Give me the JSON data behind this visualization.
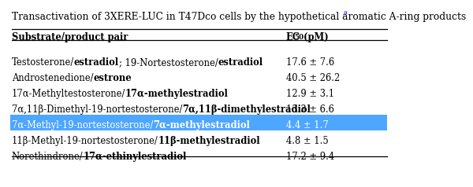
{
  "title": "Transactivation of 3XERE-LUC in T47Dco cells by the hypothetical aromatic A-ring products",
  "title_superscript": "a",
  "col1_header": "Substrate/product pair",
  "col2_header": "EC50 (pM)",
  "highlight_color": "#4da6ff",
  "background_color": "#ffffff",
  "title_fs": 8.8,
  "row_fs": 8.3,
  "rows": [
    {
      "parts": [
        [
          "Testosterone/",
          false
        ],
        [
          "estradiol",
          true
        ],
        [
          "; 19-Nortestosterone/",
          false
        ],
        [
          "estradiol",
          true
        ]
      ],
      "ec50": "17.6 ± 7.6",
      "highlight": false
    },
    {
      "parts": [
        [
          "Androstenedione/",
          false
        ],
        [
          "estrone",
          true
        ]
      ],
      "ec50": "40.5 ± 26.2",
      "highlight": false
    },
    {
      "parts": [
        [
          "17α-Methyltestosterone/",
          false
        ],
        [
          "17α-methylestradiol",
          true
        ]
      ],
      "ec50": "12.9 ± 3.1",
      "highlight": false
    },
    {
      "parts": [
        [
          "7α,11β-Dimethyl-19-nortestosterone/",
          false
        ],
        [
          "7α,11β-dimethylestradiol",
          true
        ]
      ],
      "ec50": "13.3 ± 6.6",
      "highlight": false
    },
    {
      "parts": [
        [
          "7α-Methyl-19-nortestosterone/",
          false
        ],
        [
          "7α-methylestradiol",
          true
        ]
      ],
      "ec50": "4.4 ± 1.7",
      "highlight": true
    },
    {
      "parts": [
        [
          "11β-Methyl-19-nortestosterone/",
          false
        ],
        [
          "11β-methylestradiol",
          true
        ]
      ],
      "ec50": "4.8 ± 1.5",
      "highlight": false
    },
    {
      "parts": [
        [
          "Norethindrone/",
          false
        ],
        [
          "17α-ethinylestradiol",
          true
        ]
      ],
      "ec50": "17.2 ± 9.4",
      "highlight": false
    }
  ]
}
